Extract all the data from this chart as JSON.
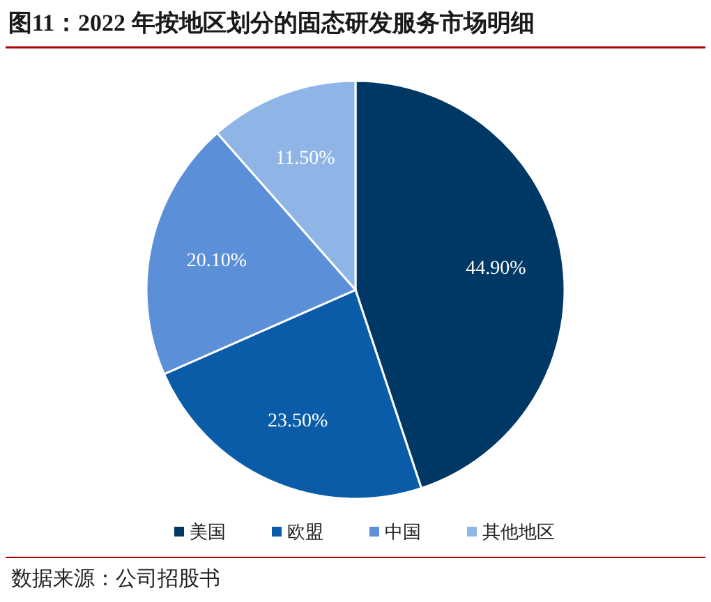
{
  "chart_data": {
    "type": "pie",
    "title": "图11：2022 年按地区划分的固态研发服务市场明细",
    "categories": [
      "美国",
      "欧盟",
      "中国",
      "其他地区"
    ],
    "values": [
      44.9,
      23.5,
      20.1,
      11.5
    ],
    "colors": [
      "#003865",
      "#0b5ca8",
      "#5b8fd8",
      "#8fb4e6"
    ],
    "value_labels": [
      "44.90%",
      "23.50%",
      "20.10%",
      "11.50%"
    ],
    "legend": "bottom",
    "annotations": [
      "数据来源：公司招股书"
    ]
  }
}
